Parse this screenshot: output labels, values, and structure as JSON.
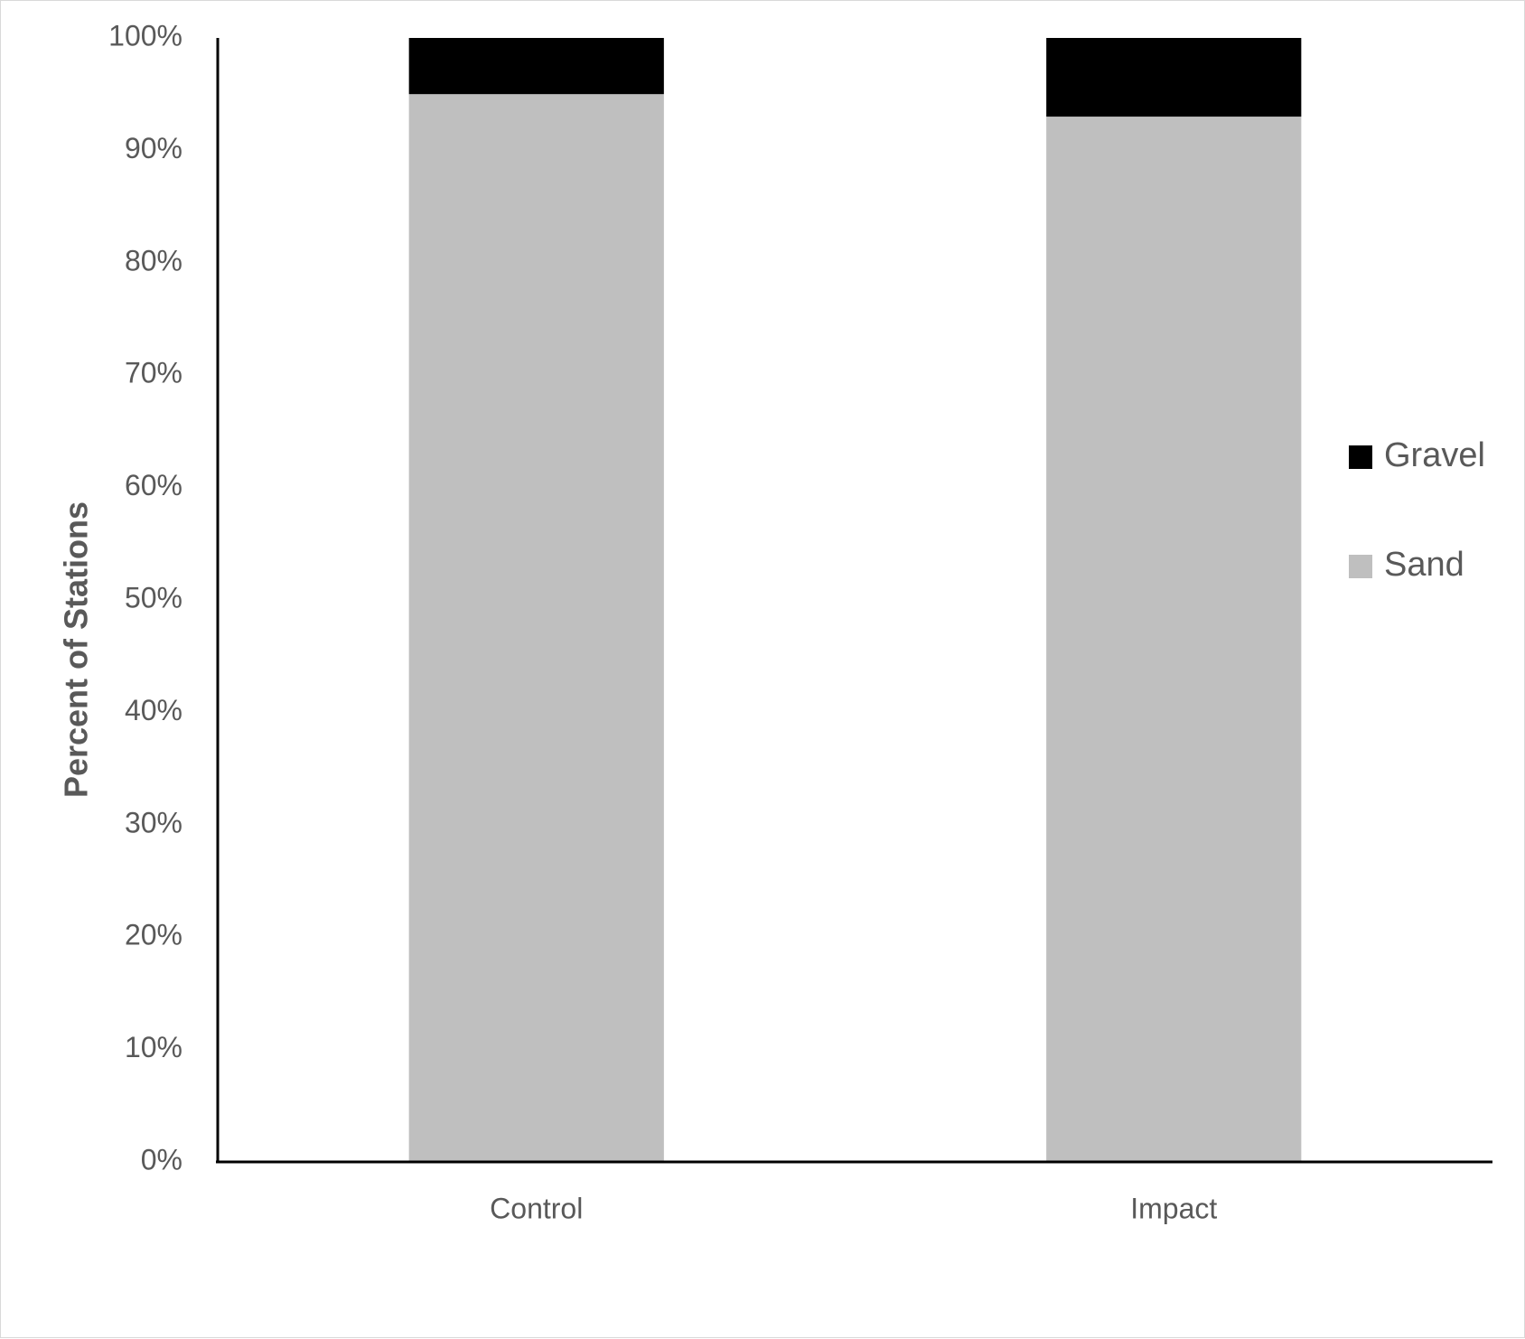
{
  "chart_data": {
    "type": "bar",
    "stacked": true,
    "categories": [
      "Control",
      "Impact"
    ],
    "series": [
      {
        "name": "Sand",
        "values": [
          95,
          93
        ],
        "color": "#bfbfbf"
      },
      {
        "name": "Gravel",
        "values": [
          5,
          7
        ],
        "color": "#000000"
      }
    ],
    "title": "",
    "xlabel": "",
    "ylabel": "Percent of Stations",
    "ylim": [
      0,
      100
    ],
    "yticks": [
      "0%",
      "10%",
      "20%",
      "30%",
      "40%",
      "50%",
      "60%",
      "70%",
      "80%",
      "90%",
      "100%"
    ],
    "grid": false,
    "legend_position": "right"
  }
}
